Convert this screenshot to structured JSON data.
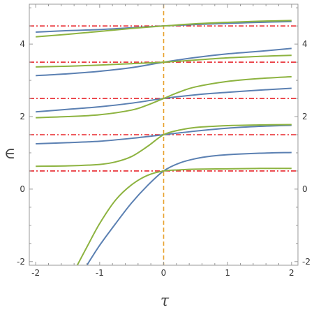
{
  "chart_data": {
    "type": "line",
    "xlabel": "τ",
    "ylabel": "∈",
    "xlim": [
      -2.1,
      2.1
    ],
    "ylim": [
      -2.1,
      5.1
    ],
    "x_ticks": [
      "-2",
      "-1",
      "0",
      "1",
      "2"
    ],
    "y_ticks": [
      "-2",
      "0",
      "2",
      "4"
    ],
    "frame": "box with ticks on all sides",
    "grid": false,
    "legend": "none",
    "reference_lines": {
      "horizontal_dashdot": {
        "y": [
          0.5,
          1.5,
          2.5,
          3.5,
          4.5
        ],
        "color": "#e8262c"
      },
      "vertical_dashed": {
        "x": 0,
        "color": "#e8a230"
      }
    },
    "series": [
      {
        "color": "#5b80b2",
        "x": [
          -1.2,
          -1.0,
          -0.75,
          -0.5,
          -0.25,
          0.0,
          0.25,
          0.5,
          0.75,
          1.0,
          1.5,
          2.0
        ],
        "y": [
          -2.1,
          -1.55,
          -0.95,
          -0.38,
          0.1,
          0.5,
          0.72,
          0.84,
          0.91,
          0.95,
          0.99,
          1.01
        ]
      },
      {
        "color": "#8db340",
        "x": [
          -1.35,
          -1.2,
          -1.0,
          -0.75,
          -0.5,
          -0.25,
          0.0,
          0.25,
          0.5,
          1.0,
          1.5,
          2.0
        ],
        "y": [
          -2.1,
          -1.6,
          -0.95,
          -0.3,
          0.12,
          0.38,
          0.5,
          0.53,
          0.55,
          0.56,
          0.57,
          0.57
        ]
      },
      {
        "color": "#5b80b2",
        "x": [
          -2.0,
          -1.5,
          -1.0,
          -0.5,
          0.0,
          0.5,
          1.0,
          1.5,
          2.0
        ],
        "y": [
          1.25,
          1.28,
          1.32,
          1.4,
          1.5,
          1.6,
          1.68,
          1.73,
          1.76
        ]
      },
      {
        "color": "#8db340",
        "x": [
          -2.0,
          -1.5,
          -1.0,
          -0.75,
          -0.5,
          -0.25,
          0.0,
          0.25,
          0.5,
          1.0,
          1.5,
          2.0
        ],
        "y": [
          0.63,
          0.64,
          0.68,
          0.75,
          0.9,
          1.18,
          1.5,
          1.63,
          1.7,
          1.75,
          1.77,
          1.78
        ]
      },
      {
        "color": "#5b80b2",
        "x": [
          -2.0,
          -1.5,
          -1.0,
          -0.5,
          0.0,
          0.5,
          1.0,
          1.5,
          2.0
        ],
        "y": [
          2.13,
          2.2,
          2.27,
          2.37,
          2.5,
          2.6,
          2.67,
          2.73,
          2.78
        ]
      },
      {
        "color": "#8db340",
        "x": [
          -2.0,
          -1.5,
          -1.0,
          -0.5,
          -0.25,
          0.0,
          0.25,
          0.5,
          1.0,
          1.5,
          2.0
        ],
        "y": [
          1.97,
          2.0,
          2.05,
          2.18,
          2.32,
          2.5,
          2.68,
          2.82,
          2.97,
          3.05,
          3.1
        ]
      },
      {
        "color": "#5b80b2",
        "x": [
          -2.0,
          -1.5,
          -1.0,
          -0.5,
          0.0,
          0.5,
          1.0,
          1.5,
          2.0
        ],
        "y": [
          3.13,
          3.18,
          3.25,
          3.35,
          3.5,
          3.63,
          3.73,
          3.8,
          3.88
        ]
      },
      {
        "color": "#8db340",
        "x": [
          -2.0,
          -1.5,
          -1.0,
          -0.5,
          0.0,
          0.5,
          1.0,
          1.5,
          2.0
        ],
        "y": [
          3.37,
          3.39,
          3.42,
          3.46,
          3.5,
          3.56,
          3.62,
          3.66,
          3.69
        ]
      },
      {
        "color": "#5b80b2",
        "x": [
          -2.0,
          -1.5,
          -1.0,
          -0.5,
          0.0,
          0.5,
          1.0,
          1.5,
          2.0
        ],
        "y": [
          4.33,
          4.37,
          4.4,
          4.45,
          4.5,
          4.54,
          4.57,
          4.6,
          4.62
        ]
      },
      {
        "color": "#8db340",
        "x": [
          -2.0,
          -1.5,
          -1.0,
          -0.5,
          0.0,
          0.5,
          1.0,
          1.5,
          2.0
        ],
        "y": [
          4.2,
          4.27,
          4.35,
          4.43,
          4.5,
          4.56,
          4.6,
          4.63,
          4.65
        ]
      }
    ]
  }
}
